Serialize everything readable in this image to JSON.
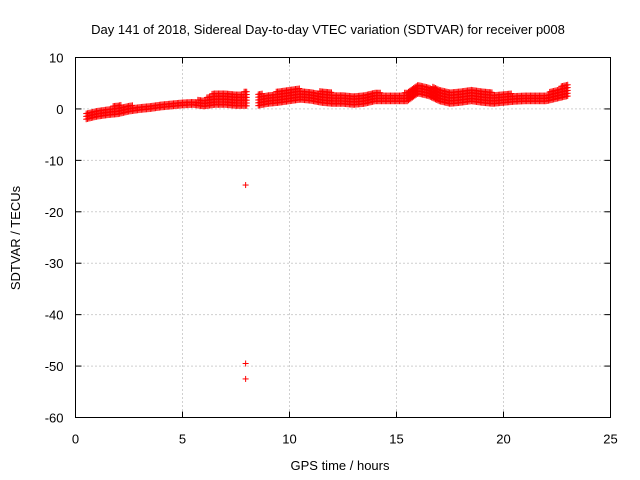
{
  "chart_data": {
    "type": "scatter",
    "title": "Day 141 of 2018, Sidereal Day-to-day VTEC variation (SDTVAR) for receiver p008",
    "xlabel": "GPS time / hours",
    "ylabel": "SDTVAR / TECUs",
    "xlim": [
      0,
      25
    ],
    "ylim": [
      -60,
      10
    ],
    "xticks": [
      "0",
      "5",
      "10",
      "15",
      "20",
      "25"
    ],
    "yticks": [
      "10",
      "0",
      "-10",
      "-20",
      "-30",
      "-40",
      "-50",
      "-60"
    ],
    "grid": true,
    "marker": "+",
    "color": "#ff0000",
    "series": [
      {
        "name": "SDTVAR",
        "band": {
          "x": [
            0.5,
            1.0,
            1.5,
            2.0,
            2.5,
            3.0,
            3.5,
            4.0,
            4.5,
            5.0,
            5.5,
            6.0,
            6.5,
            7.0,
            7.5,
            8.0,
            8.5,
            9.0,
            9.5,
            10.0,
            10.5,
            11.0,
            11.5,
            12.0,
            12.5,
            13.0,
            13.5,
            14.0,
            14.5,
            15.0,
            15.5,
            16.0,
            16.5,
            17.0,
            17.5,
            18.0,
            18.5,
            19.0,
            19.5,
            20.0,
            20.5,
            21.0,
            21.5,
            22.0,
            22.5,
            23.0
          ],
          "lower": [
            -2.0,
            -1.5,
            -1.2,
            -1.0,
            -0.5,
            -0.2,
            0.0,
            0.3,
            0.5,
            0.7,
            0.8,
            0.5,
            0.8,
            0.8,
            0.6,
            0.6,
            0.6,
            1.0,
            1.2,
            1.5,
            1.8,
            1.6,
            1.2,
            1.0,
            1.0,
            0.8,
            1.0,
            1.5,
            1.5,
            1.5,
            1.5,
            3.0,
            2.5,
            1.5,
            1.0,
            1.2,
            1.5,
            1.2,
            1.0,
            1.2,
            1.4,
            1.5,
            1.5,
            1.5,
            2.0,
            2.5
          ],
          "upper": [
            -0.5,
            0.0,
            0.3,
            0.8,
            0.8,
            0.5,
            0.8,
            1.0,
            1.2,
            1.5,
            1.8,
            1.8,
            3.5,
            3.5,
            3.0,
            3.5,
            3.0,
            3.0,
            3.5,
            3.8,
            4.0,
            3.5,
            3.5,
            3.2,
            2.8,
            2.5,
            3.0,
            3.3,
            3.0,
            3.0,
            3.2,
            5.0,
            4.5,
            4.0,
            3.5,
            3.5,
            3.8,
            3.5,
            3.2,
            3.0,
            3.0,
            3.0,
            3.0,
            3.0,
            4.0,
            5.0
          ]
        },
        "gaps": [
          [
            8.0,
            8.5
          ]
        ],
        "outliers": [
          {
            "x": 7.95,
            "y": -14.8
          },
          {
            "x": 7.95,
            "y": -49.5
          },
          {
            "x": 7.95,
            "y": -52.5
          }
        ]
      }
    ]
  }
}
